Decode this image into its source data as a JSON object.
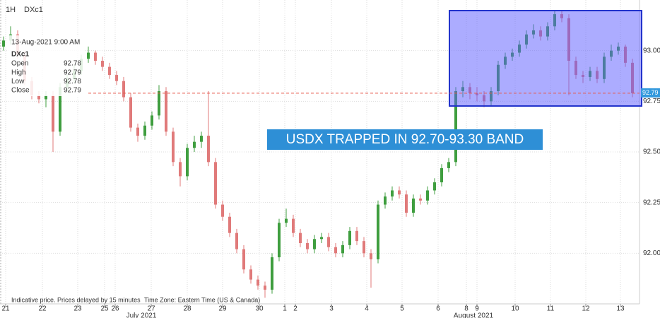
{
  "header": {
    "interval": "1H",
    "symbol": "DXc1"
  },
  "info_box": {
    "timestamp": "13-Aug-2021 9:00 AM",
    "symbol": "DXc1",
    "rows": [
      [
        "Open",
        92.78
      ],
      [
        "High",
        92.79
      ],
      [
        "Low",
        92.78
      ],
      [
        "Close",
        92.79
      ]
    ]
  },
  "annotation": "USDX TRAPPED IN 92.70-93.30 BAND",
  "footer": {
    "delay_note": "Indicative price. Prices delayed by 15 minutes",
    "timezone": "Time Zone: Eastern Time (US & Canada)"
  },
  "chart_data": {
    "type": "candlestick",
    "up_color": "#3f9e3f",
    "down_color": "#e07a7a",
    "grid": true,
    "last_price": 92.79,
    "last_price_color": "#e8564a",
    "ylim": [
      91.75,
      93.25
    ],
    "yticks": [
      {
        "value": 92.0,
        "label": "92.00"
      },
      {
        "value": 92.25,
        "label": "92.25"
      },
      {
        "value": 92.5,
        "label": "92.50"
      },
      {
        "value": 92.75,
        "label": "92.75"
      },
      {
        "value": 93.0,
        "label": "93.00"
      }
    ],
    "xlim": [
      -0.5,
      90
    ],
    "xticks": [
      {
        "value": 0.3,
        "label": "21"
      },
      {
        "value": 5.5,
        "label": "22"
      },
      {
        "value": 10.5,
        "label": "23"
      },
      {
        "value": 14.3,
        "label": "25"
      },
      {
        "value": 15.8,
        "label": "26"
      },
      {
        "value": 20.9,
        "label": "27"
      },
      {
        "value": 26,
        "label": "28"
      },
      {
        "value": 31,
        "label": "29"
      },
      {
        "value": 36.2,
        "label": "30"
      },
      {
        "value": 39.8,
        "label": "1"
      },
      {
        "value": 41.3,
        "label": "2"
      },
      {
        "value": 46.4,
        "label": "3"
      },
      {
        "value": 51.4,
        "label": "4"
      },
      {
        "value": 56.4,
        "label": "5"
      },
      {
        "value": 61.5,
        "label": "6"
      },
      {
        "value": 65.5,
        "label": "8"
      },
      {
        "value": 67,
        "label": "9"
      },
      {
        "value": 72.4,
        "label": "10"
      },
      {
        "value": 77.4,
        "label": "11"
      },
      {
        "value": 82.4,
        "label": "12"
      },
      {
        "value": 87.3,
        "label": "13"
      }
    ],
    "x_month_labels": [
      {
        "value": 19.5,
        "label": "July 2021"
      },
      {
        "value": 66.5,
        "label": "August 2021"
      }
    ],
    "open": [
      93.02,
      93.05,
      93.08,
      92.98,
      92.85,
      92.78,
      92.76,
      92.78,
      92.6,
      92.82,
      92.86,
      92.9,
      92.96,
      92.99,
      92.95,
      92.92,
      92.88,
      92.85,
      92.77,
      92.62,
      92.58,
      92.63,
      92.68,
      92.8,
      92.6,
      92.45,
      92.38,
      92.52,
      92.55,
      92.58,
      92.45,
      92.24,
      92.18,
      92.1,
      92.02,
      91.92,
      91.87,
      91.84,
      91.82,
      91.98,
      92.15,
      92.17,
      92.1,
      92.05,
      92.02,
      92.07,
      92.08,
      92.03,
      92.0,
      92.04,
      92.11,
      92.06,
      92.0,
      91.97,
      92.24,
      92.28,
      92.31,
      92.29,
      92.2,
      92.27,
      92.26,
      92.31,
      92.35,
      92.42,
      92.45,
      92.8,
      92.82,
      92.79,
      92.78,
      92.75,
      92.8,
      92.93,
      92.97,
      92.99,
      93.03,
      93.08,
      93.1,
      93.07,
      93.12,
      93.18,
      93.16,
      92.95,
      92.88,
      92.87,
      92.9,
      92.86,
      92.97,
      93.0,
      93.02,
      92.94
    ],
    "high": [
      93.07,
      93.12,
      93.1,
      93.0,
      92.87,
      92.8,
      92.8,
      92.8,
      92.84,
      92.88,
      92.93,
      92.98,
      93.02,
      93.0,
      92.97,
      92.94,
      92.9,
      92.87,
      92.79,
      92.64,
      92.65,
      92.7,
      92.83,
      92.82,
      92.62,
      92.47,
      92.54,
      92.58,
      92.6,
      92.8,
      92.47,
      92.26,
      92.2,
      92.12,
      92.04,
      91.94,
      91.89,
      91.86,
      92.0,
      92.17,
      92.22,
      92.19,
      92.12,
      92.07,
      92.09,
      92.1,
      92.1,
      92.05,
      92.06,
      92.13,
      92.13,
      92.08,
      92.02,
      92.26,
      92.3,
      92.33,
      92.33,
      92.31,
      92.29,
      92.29,
      92.33,
      92.37,
      92.44,
      92.47,
      92.82,
      92.85,
      92.84,
      92.82,
      92.8,
      92.82,
      92.95,
      92.99,
      93.01,
      93.05,
      93.1,
      93.13,
      93.12,
      93.14,
      93.2,
      93.2,
      93.18,
      92.97,
      92.9,
      92.92,
      92.92,
      92.99,
      93.03,
      93.04,
      93.03,
      92.96
    ],
    "low": [
      93.0,
      93.03,
      92.96,
      92.83,
      92.76,
      92.74,
      92.72,
      92.5,
      92.58,
      92.8,
      92.84,
      92.88,
      92.94,
      92.93,
      92.9,
      92.86,
      92.83,
      92.75,
      92.6,
      92.55,
      92.56,
      92.61,
      92.66,
      92.58,
      92.43,
      92.33,
      92.36,
      92.5,
      92.52,
      92.43,
      92.22,
      92.16,
      92.08,
      92.0,
      91.9,
      91.85,
      91.82,
      91.78,
      91.8,
      91.96,
      92.13,
      92.08,
      92.03,
      92.0,
      92.0,
      92.05,
      92.01,
      91.98,
      91.98,
      92.02,
      92.04,
      91.98,
      91.83,
      91.95,
      92.22,
      92.26,
      92.27,
      92.18,
      92.18,
      92.24,
      92.24,
      92.29,
      92.33,
      92.4,
      92.43,
      92.77,
      92.76,
      92.75,
      92.72,
      92.73,
      92.78,
      92.91,
      92.95,
      92.97,
      93.01,
      93.06,
      93.05,
      93.05,
      93.1,
      93.14,
      92.78,
      92.86,
      92.84,
      92.85,
      92.84,
      92.84,
      92.95,
      92.98,
      92.92,
      92.77
    ],
    "close": [
      93.05,
      93.08,
      92.98,
      92.85,
      92.78,
      92.76,
      92.78,
      92.6,
      92.82,
      92.86,
      92.9,
      92.96,
      92.99,
      92.95,
      92.92,
      92.88,
      92.85,
      92.77,
      92.62,
      92.58,
      92.63,
      92.68,
      92.8,
      92.6,
      92.45,
      92.38,
      92.52,
      92.55,
      92.58,
      92.45,
      92.24,
      92.18,
      92.1,
      92.02,
      91.92,
      91.87,
      91.84,
      91.82,
      91.98,
      92.15,
      92.17,
      92.1,
      92.05,
      92.02,
      92.07,
      92.08,
      92.03,
      92.0,
      92.04,
      92.11,
      92.06,
      92.0,
      91.97,
      92.24,
      92.28,
      92.31,
      92.29,
      92.2,
      92.27,
      92.26,
      92.31,
      92.35,
      92.42,
      92.45,
      92.8,
      92.82,
      92.79,
      92.78,
      92.75,
      92.8,
      92.93,
      92.97,
      92.99,
      93.03,
      93.08,
      93.1,
      93.07,
      93.12,
      93.18,
      93.16,
      92.95,
      92.88,
      92.87,
      92.9,
      92.86,
      92.97,
      93.0,
      93.02,
      92.94,
      92.79
    ]
  }
}
